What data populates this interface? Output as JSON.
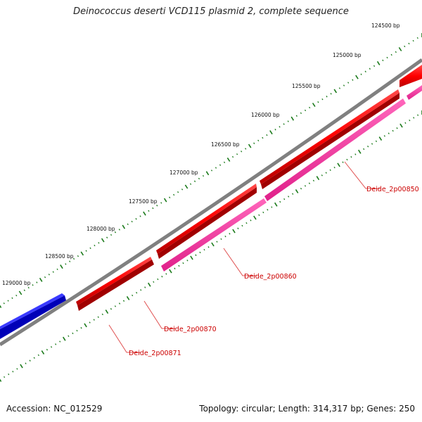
{
  "title": "Deinococcus deserti VCD115 plasmid 2, complete sequence",
  "accession_text": "Accession: NC_012529",
  "summary_text": "Topology: circular; Length: 314,317 bp; Genes: 250",
  "colors": {
    "backbone": "#808080",
    "tick": "#1a7a1a",
    "forward_gene": "#ff0000",
    "reverse_gene": "#0000ff",
    "orf_track": "#ff3399",
    "label_line": "#e05050",
    "label_text": "#cc0000"
  },
  "scale_ticks": [
    {
      "label": "124500 bp"
    },
    {
      "label": "125000 bp"
    },
    {
      "label": "125500 bp"
    },
    {
      "label": "126000 bp"
    },
    {
      "label": "126500 bp"
    },
    {
      "label": "127000 bp"
    },
    {
      "label": "127500 bp"
    },
    {
      "label": "128000 bp"
    },
    {
      "label": "128500 bp"
    },
    {
      "label": "129000 bp"
    }
  ],
  "gene_labels": [
    {
      "name": "Deide_2p00850"
    },
    {
      "name": "Deide_2p00860"
    },
    {
      "name": "Deide_2p00870"
    },
    {
      "name": "Deide_2p00871"
    }
  ]
}
